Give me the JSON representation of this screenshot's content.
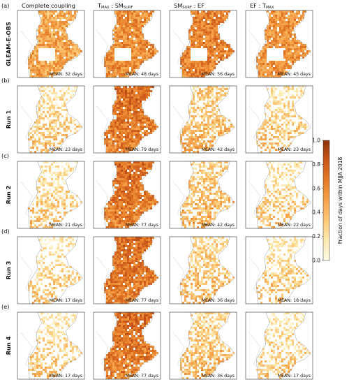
{
  "chart_data": {
    "type": "heatmap",
    "columns": [
      {
        "title": "Complete coupling"
      },
      {
        "title": "T",
        "sub1": "MAX",
        "mid": " : SM",
        "sub2": "SURF"
      },
      {
        "title": "SM",
        "sub1": "SURF",
        "mid": " : EF",
        "sub2": ""
      },
      {
        "title": "EF : T",
        "sub1": "MAX",
        "mid": "",
        "sub2": ""
      }
    ],
    "rows": [
      {
        "panel": "(a)",
        "label": "GLEAM-E-OBS",
        "means": [
          "MEAN: 32 days",
          "MEAN: 48 days",
          "MEAN: 56 days",
          "MEAN: 45 days"
        ],
        "mean_values": [
          32,
          48,
          56,
          45
        ]
      },
      {
        "panel": "(b)",
        "label": "Run 1",
        "means": [
          "MEAN: 23 days",
          "MEAN: 79 days",
          "MEAN: 42 days",
          "MEAN: 23 days"
        ],
        "mean_values": [
          23,
          79,
          42,
          23
        ]
      },
      {
        "panel": "(c)",
        "label": "Run 2",
        "means": [
          "MEAN: 21 days",
          "MEAN: 77 days",
          "MEAN: 42 days",
          "MEAN: 22 days"
        ],
        "mean_values": [
          21,
          77,
          42,
          22
        ]
      },
      {
        "panel": "(d)",
        "label": "Run 3",
        "means": [
          "MEAN: 17 days",
          "MEAN: 77 days",
          "MEAN: 36 days",
          "MEAN: 18 days"
        ],
        "mean_values": [
          17,
          77,
          36,
          18
        ]
      },
      {
        "panel": "(e)",
        "label": "Run 4",
        "means": [
          "MEAN: 17 days",
          "MEAN: 77 days",
          "MEAN: 36 days",
          "MEAN: 17 days"
        ],
        "mean_values": [
          17,
          77,
          36,
          17
        ]
      }
    ],
    "colorbar": {
      "label": "Fraction of days within MJJA 2018",
      "ticks": [
        "0.0",
        "0.2",
        "0.4",
        "0.6",
        "0.8",
        "1.0"
      ],
      "range": [
        0,
        1
      ],
      "colors": [
        "#fffbe6",
        "#fde9b0",
        "#fcc877",
        "#f6a24a",
        "#e47a26",
        "#c9561a",
        "#8f3408"
      ]
    }
  }
}
